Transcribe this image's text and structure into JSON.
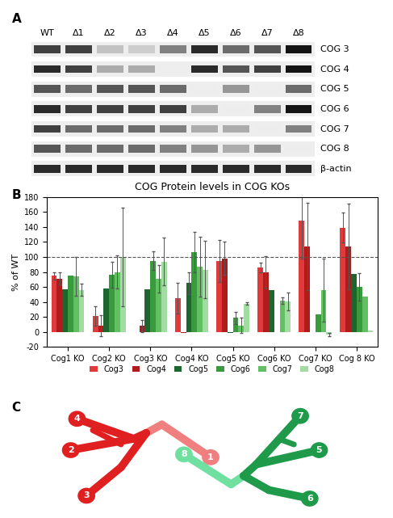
{
  "panel_labels": [
    "A",
    "B",
    "C"
  ],
  "blot": {
    "lanes": [
      "WT",
      "Δ1",
      "Δ2",
      "Δ3",
      "Δ4",
      "Δ5",
      "Δ6",
      "Δ7",
      "Δ8"
    ],
    "rows": [
      {
        "name": "COG 3",
        "intensity": [
          0.8,
          0.8,
          0.2,
          0.15,
          0.5,
          0.9,
          0.6,
          0.7,
          1.0
        ]
      },
      {
        "name": "COG 4",
        "intensity": [
          0.9,
          0.8,
          0.3,
          0.3,
          0.0,
          0.9,
          0.7,
          0.8,
          1.0
        ]
      },
      {
        "name": "COG 5",
        "intensity": [
          0.7,
          0.6,
          0.7,
          0.7,
          0.6,
          0.0,
          0.4,
          0.0,
          0.6
        ]
      },
      {
        "name": "COG 6",
        "intensity": [
          0.9,
          0.8,
          0.8,
          0.8,
          0.8,
          0.3,
          0.0,
          0.5,
          1.0
        ]
      },
      {
        "name": "COG 7",
        "intensity": [
          0.8,
          0.6,
          0.6,
          0.6,
          0.5,
          0.3,
          0.3,
          0.0,
          0.5
        ]
      },
      {
        "name": "COG 8",
        "intensity": [
          0.7,
          0.6,
          0.6,
          0.6,
          0.5,
          0.4,
          0.3,
          0.4,
          0.0
        ]
      },
      {
        "name": "β-actin",
        "intensity": [
          0.9,
          0.9,
          0.9,
          0.9,
          0.9,
          0.9,
          0.9,
          0.9,
          0.9
        ]
      }
    ]
  },
  "chart_data": {
    "type": "bar",
    "title": "COG Protein levels in COG KOs",
    "y_label": "% of WT",
    "categories": [
      "Cog1 KO",
      "Cog2 KO",
      "Cog3 KO",
      "Cog4 KO",
      "Cog5 KO",
      "Cog6 KO",
      "Cog7 KO",
      "Cog 8 KO"
    ],
    "ylim": [
      -20,
      180
    ],
    "yticks": [
      -20,
      0,
      20,
      40,
      60,
      80,
      100,
      120,
      140,
      160,
      180
    ],
    "hline": 100,
    "grid": false,
    "legend": "lower center",
    "series": [
      {
        "name": "Cog3",
        "color": "#e03a3a",
        "values": [
          75,
          21,
          0,
          45,
          95,
          86,
          148,
          139
        ],
        "errors": [
          5,
          13,
          null,
          20,
          28,
          6,
          50,
          20
        ]
      },
      {
        "name": "Cog4",
        "color": "#b01c1c",
        "values": [
          71,
          8,
          8,
          -1,
          98,
          80,
          114,
          114
        ],
        "errors": [
          8,
          14,
          8,
          null,
          22,
          21,
          58,
          57
        ]
      },
      {
        "name": "Cog5",
        "color": "#1d6630",
        "values": [
          57,
          58,
          57,
          65,
          -1,
          56,
          0,
          77
        ],
        "errors": [
          null,
          null,
          null,
          15,
          null,
          null,
          null,
          null
        ]
      },
      {
        "name": "Cog6",
        "color": "#3a9a3e",
        "values": [
          75,
          76,
          95,
          106,
          19,
          0,
          24,
          60
        ],
        "errors": [
          null,
          17,
          12,
          27,
          8,
          null,
          null,
          18
        ]
      },
      {
        "name": "Cog7",
        "color": "#62c062",
        "values": [
          74,
          80,
          71,
          87,
          9,
          42,
          56,
          47
        ],
        "errors": [
          26,
          22,
          18,
          40,
          10,
          4,
          42,
          null
        ]
      },
      {
        "name": "Cog8",
        "color": "#a2dca2",
        "values": [
          56,
          100,
          94,
          83,
          38,
          41,
          -3,
          2
        ],
        "errors": [
          8,
          66,
          32,
          38,
          2,
          12,
          2,
          null
        ]
      }
    ]
  },
  "diagram": {
    "nodes": [
      {
        "label": "1",
        "color": "#f08080"
      },
      {
        "label": "2",
        "color": "#e02020"
      },
      {
        "label": "3",
        "color": "#e02020"
      },
      {
        "label": "4",
        "color": "#e02020"
      },
      {
        "label": "5",
        "color": "#1f9a4a"
      },
      {
        "label": "6",
        "color": "#1f9a4a"
      },
      {
        "label": "7",
        "color": "#1f9a4a"
      },
      {
        "label": "8",
        "color": "#70e0a0"
      }
    ]
  }
}
